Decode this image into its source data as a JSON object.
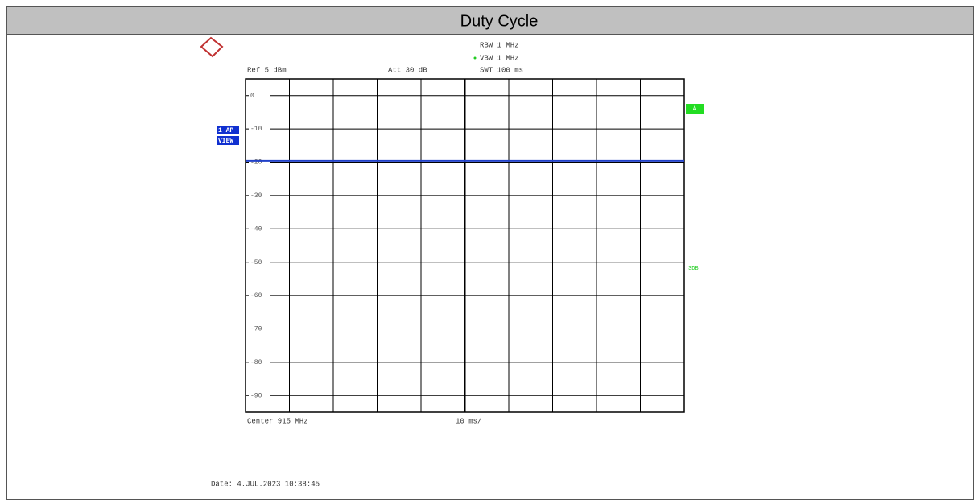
{
  "chart_data": {
    "type": "line",
    "title": "Duty Cycle",
    "annotations": {
      "rbw": "RBW 1 MHz",
      "vbw": "VBW 1 MHz",
      "ref": "Ref 5 dBm",
      "att": "Att 30 dB",
      "swt": "SWT 100 ms",
      "trace_mode": "1 AP",
      "view": "VIEW",
      "trace_label": "A",
      "level_label": "3DB",
      "center": "Center 915 MHz",
      "span": "10 ms/",
      "date": "Date: 4.JUL.2023 10:38:45"
    },
    "x": [
      0,
      100
    ],
    "values": [
      -19.6,
      -19.6
    ],
    "color": "#2040c8",
    "xlim": [
      0,
      100
    ],
    "ylim": [
      -95,
      5
    ],
    "yticks": [
      0,
      -10,
      -20,
      -30,
      -40,
      -50,
      -60,
      -70,
      -80,
      -90
    ],
    "grid": true
  }
}
